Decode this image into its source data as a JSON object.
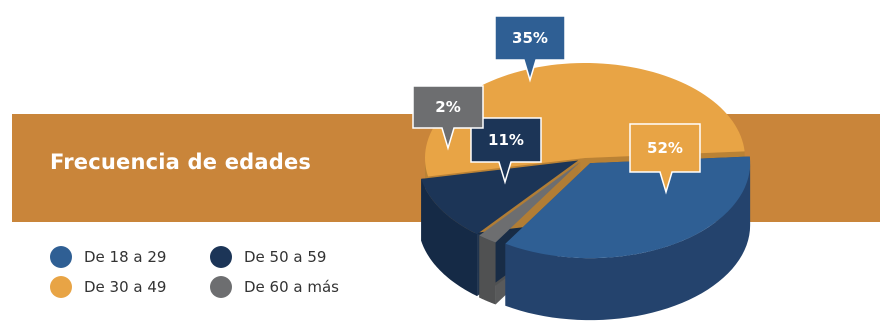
{
  "chart_data": {
    "type": "pie",
    "title": "Frecuencia de edades",
    "slices": [
      {
        "label": "De 18 a 29",
        "value": 35,
        "display": "35%",
        "color": "#2f5f94",
        "side_color": "#24436d"
      },
      {
        "label": "De 30 a 49",
        "value": 52,
        "display": "52%",
        "color": "#e8a445",
        "side_color": "#b98235"
      },
      {
        "label": "De 50 a 59",
        "value": 11,
        "display": "11%",
        "color": "#1c3557",
        "side_color": "#152a46"
      },
      {
        "label": "De 60 a más",
        "value": 2,
        "display": "2%",
        "color": "#6d6e70",
        "side_color": "#505152"
      }
    ],
    "legend": [
      {
        "label": "De 18 a 29",
        "color": "#2f5f94"
      },
      {
        "label": "De 30 a 49",
        "color": "#e8a445"
      },
      {
        "label": "De 50 a 59",
        "color": "#1c3557"
      },
      {
        "label": "De 60 a más",
        "color": "#6d6e70"
      }
    ],
    "legend_placement": "bottom-left"
  },
  "colors": {
    "title_band": "#c9853a",
    "title_text": "#ffffff"
  }
}
